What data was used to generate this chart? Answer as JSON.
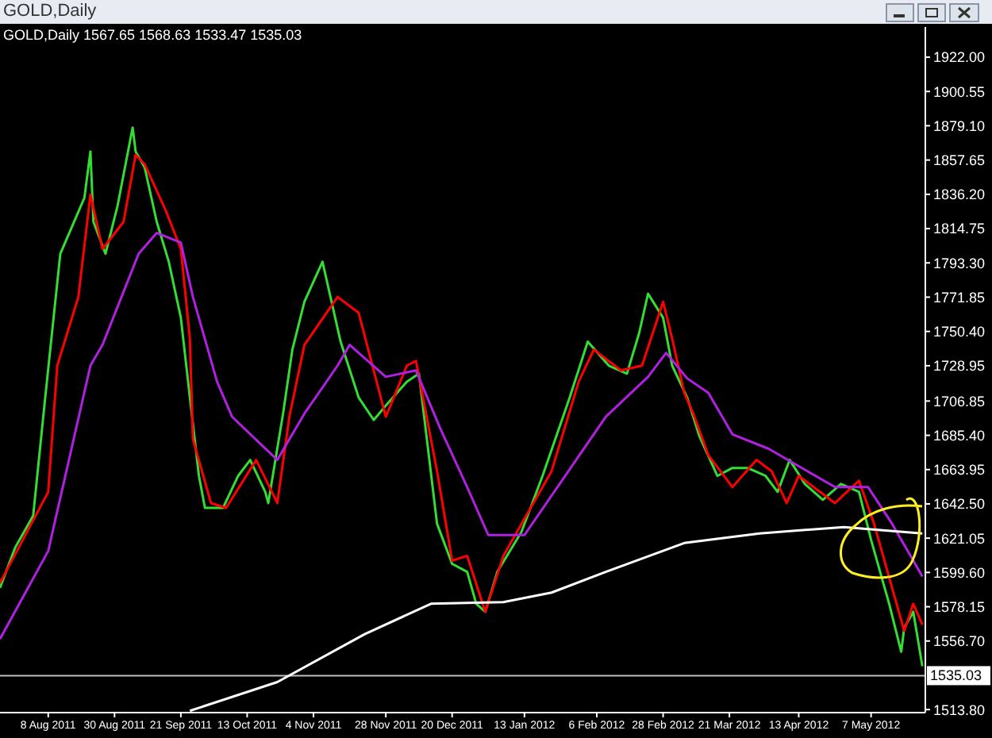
{
  "chart_data": {
    "type": "line",
    "title": "GOLD,Daily",
    "subtitle": "GOLD,Daily  1567.65 1568.63 1533.47 1535.03",
    "xlim": [
      "2011-07-23",
      "2012-05-25"
    ],
    "xticks": [
      {
        "value": "2011-08-08",
        "label": "8 Aug 2011"
      },
      {
        "value": "2011-08-30",
        "label": "30 Aug 2011"
      },
      {
        "value": "2011-09-21",
        "label": "21 Sep 2011"
      },
      {
        "value": "2011-10-13",
        "label": "13 Oct 2011"
      },
      {
        "value": "2011-11-04",
        "label": "4 Nov 2011"
      },
      {
        "value": "2011-11-28",
        "label": "28 Nov 2011"
      },
      {
        "value": "2011-12-20",
        "label": "20 Dec 2011"
      },
      {
        "value": "2012-01-13",
        "label": "13 Jan 2012"
      },
      {
        "value": "2012-02-06",
        "label": "6 Feb 2012"
      },
      {
        "value": "2012-02-28",
        "label": "28 Feb 2012"
      },
      {
        "value": "2012-03-21",
        "label": "21 Mar 2012"
      },
      {
        "value": "2012-04-13",
        "label": "13 Apr 2012"
      },
      {
        "value": "2012-05-07",
        "label": "7 May 2012"
      }
    ],
    "ylim": [
      1511.9,
      1940.9
    ],
    "yticks": [
      {
        "value": 1513.8,
        "label": "1513.80"
      },
      {
        "value": 1556.7,
        "label": "1556.70"
      },
      {
        "value": 1578.15,
        "label": "1578.15"
      },
      {
        "value": 1599.6,
        "label": "1599.60"
      },
      {
        "value": 1621.05,
        "label": "1621.05"
      },
      {
        "value": 1642.5,
        "label": "1642.50"
      },
      {
        "value": 1663.95,
        "label": "1663.95"
      },
      {
        "value": 1685.4,
        "label": "1685.40"
      },
      {
        "value": 1706.85,
        "label": "1706.85"
      },
      {
        "value": 1728.95,
        "label": "1728.95"
      },
      {
        "value": 1750.4,
        "label": "1750.40"
      },
      {
        "value": 1771.85,
        "label": "1771.85"
      },
      {
        "value": 1793.3,
        "label": "1793.30"
      },
      {
        "value": 1814.75,
        "label": "1814.75"
      },
      {
        "value": 1836.2,
        "label": "1836.20"
      },
      {
        "value": 1857.65,
        "label": "1857.65"
      },
      {
        "value": 1879.1,
        "label": "1879.10"
      },
      {
        "value": 1900.55,
        "label": "1900.55"
      },
      {
        "value": 1922,
        "label": "1922.00"
      }
    ],
    "ref_lines": [
      {
        "axis": "y",
        "value": 1535.03,
        "label": "1535.03",
        "color": "#c0c0c0"
      }
    ],
    "marker": "none",
    "line_style": "solid",
    "series": [
      {
        "color": "#33dd33",
        "x": [
          "2011-07-23",
          "2011-07-28",
          "2011-08-03",
          "2011-08-07",
          "2011-08-12",
          "2011-08-20",
          "2011-08-22",
          "2011-08-23",
          "2011-08-27",
          "2011-08-31",
          "2011-09-05",
          "2011-09-06",
          "2011-09-09",
          "2011-09-13",
          "2011-09-17",
          "2011-09-21",
          "2011-09-24",
          "2011-09-27",
          "2011-09-29",
          "2011-10-05",
          "2011-10-10",
          "2011-10-14",
          "2011-10-19",
          "2011-10-20",
          "2011-10-25",
          "2011-10-28",
          "2011-11-01",
          "2011-11-07",
          "2011-11-13",
          "2011-11-19",
          "2011-11-24",
          "2011-11-28",
          "2011-12-05",
          "2011-12-09",
          "2011-12-15",
          "2011-12-20",
          "2011-12-25",
          "2011-12-28",
          "2011-12-31",
          "2012-01-04",
          "2012-01-12",
          "2012-01-19",
          "2012-01-28",
          "2012-02-03",
          "2012-02-10",
          "2012-02-16",
          "2012-02-20",
          "2012-02-23",
          "2012-02-28",
          "2012-03-02",
          "2012-03-07",
          "2012-03-11",
          "2012-03-17",
          "2012-03-22",
          "2012-03-27",
          "2012-04-02",
          "2012-04-06",
          "2012-04-10",
          "2012-04-15",
          "2012-04-21",
          "2012-04-27",
          "2012-05-03",
          "2012-05-07",
          "2012-05-13",
          "2012-05-17",
          "2012-05-18",
          "2012-05-21",
          "2012-05-24"
        ],
        "values": [
          1590,
          1615,
          1635,
          1709,
          1799,
          1834,
          1863,
          1819,
          1799,
          1829,
          1878,
          1863,
          1853,
          1819,
          1794,
          1759,
          1709,
          1660,
          1640,
          1640,
          1660,
          1670,
          1650,
          1643,
          1700,
          1739,
          1769,
          1794,
          1744,
          1709,
          1695,
          1704,
          1719,
          1724,
          1630,
          1605,
          1600,
          1580,
          1575,
          1600,
          1625,
          1660,
          1709,
          1744,
          1729,
          1724,
          1749,
          1774,
          1759,
          1729,
          1709,
          1685,
          1660,
          1665,
          1665,
          1660,
          1650,
          1670,
          1655,
          1645,
          1655,
          1650,
          1620,
          1580,
          1550,
          1565,
          1575,
          1541
        ]
      },
      {
        "color": "#ff0000",
        "x": [
          "2011-07-23",
          "2011-08-08",
          "2011-08-11",
          "2011-08-18",
          "2011-08-22",
          "2011-08-26",
          "2011-09-02",
          "2011-09-06",
          "2011-09-09",
          "2011-09-16",
          "2011-09-21",
          "2011-09-24",
          "2011-09-25",
          "2011-10-01",
          "2011-10-06",
          "2011-10-16",
          "2011-10-23",
          "2011-10-27",
          "2011-11-01",
          "2011-11-12",
          "2011-11-19",
          "2011-11-28",
          "2011-12-05",
          "2011-12-08",
          "2011-12-15",
          "2011-12-20",
          "2011-12-25",
          "2011-12-31",
          "2012-01-06",
          "2012-01-22",
          "2012-01-31",
          "2012-02-05",
          "2012-02-14",
          "2012-02-21",
          "2012-02-28",
          "2012-03-02",
          "2012-03-06",
          "2012-03-09",
          "2012-03-14",
          "2012-03-22",
          "2012-03-30",
          "2012-04-04",
          "2012-04-09",
          "2012-04-13",
          "2012-04-25",
          "2012-05-03",
          "2012-05-08",
          "2012-05-18",
          "2012-05-21",
          "2012-05-24"
        ],
        "values": [
          1593,
          1650,
          1729,
          1772,
          1836,
          1802,
          1819,
          1861,
          1855,
          1826,
          1802,
          1746,
          1683,
          1643,
          1640,
          1670,
          1643,
          1697,
          1742,
          1772,
          1762,
          1697,
          1729,
          1732,
          1663,
          1607,
          1610,
          1575,
          1610,
          1663,
          1719,
          1739,
          1726,
          1729,
          1769,
          1746,
          1712,
          1699,
          1673,
          1653,
          1670,
          1663,
          1643,
          1660,
          1643,
          1657,
          1630,
          1563,
          1580,
          1567
        ]
      },
      {
        "color": "#b020e0",
        "x": [
          "2011-07-23",
          "2011-08-08",
          "2011-08-22",
          "2011-08-26",
          "2011-09-07",
          "2011-09-13",
          "2011-09-21",
          "2011-09-25",
          "2011-10-03",
          "2011-10-08",
          "2011-10-23",
          "2011-11-01",
          "2011-11-12",
          "2011-11-16",
          "2011-11-28",
          "2011-12-08",
          "2011-12-16",
          "2011-12-25",
          "2012-01-01",
          "2012-01-13",
          "2012-02-09",
          "2012-02-23",
          "2012-02-29",
          "2012-03-07",
          "2012-03-14",
          "2012-03-22",
          "2012-04-03",
          "2012-04-25",
          "2012-05-06",
          "2012-05-14",
          "2012-05-21",
          "2012-05-24"
        ],
        "values": [
          1558,
          1613,
          1729,
          1742,
          1799,
          1812,
          1806,
          1772,
          1719,
          1697,
          1670,
          1699,
          1729,
          1742,
          1722,
          1726,
          1690,
          1653,
          1623,
          1623,
          1697,
          1722,
          1737,
          1721,
          1712,
          1686,
          1677,
          1653,
          1653,
          1630,
          1607,
          1597
        ]
      },
      {
        "color": "#ffffff",
        "x": [
          "2011-09-24",
          "2011-10-23",
          "2011-11-21",
          "2011-12-13",
          "2012-01-06",
          "2012-01-22",
          "2012-02-09",
          "2012-03-06",
          "2012-03-31",
          "2012-04-28",
          "2012-05-24"
        ],
        "values": [
          1513,
          1531,
          1561,
          1580,
          1581,
          1587,
          1600,
          1618,
          1624,
          1628,
          1624
        ]
      }
    ]
  }
}
